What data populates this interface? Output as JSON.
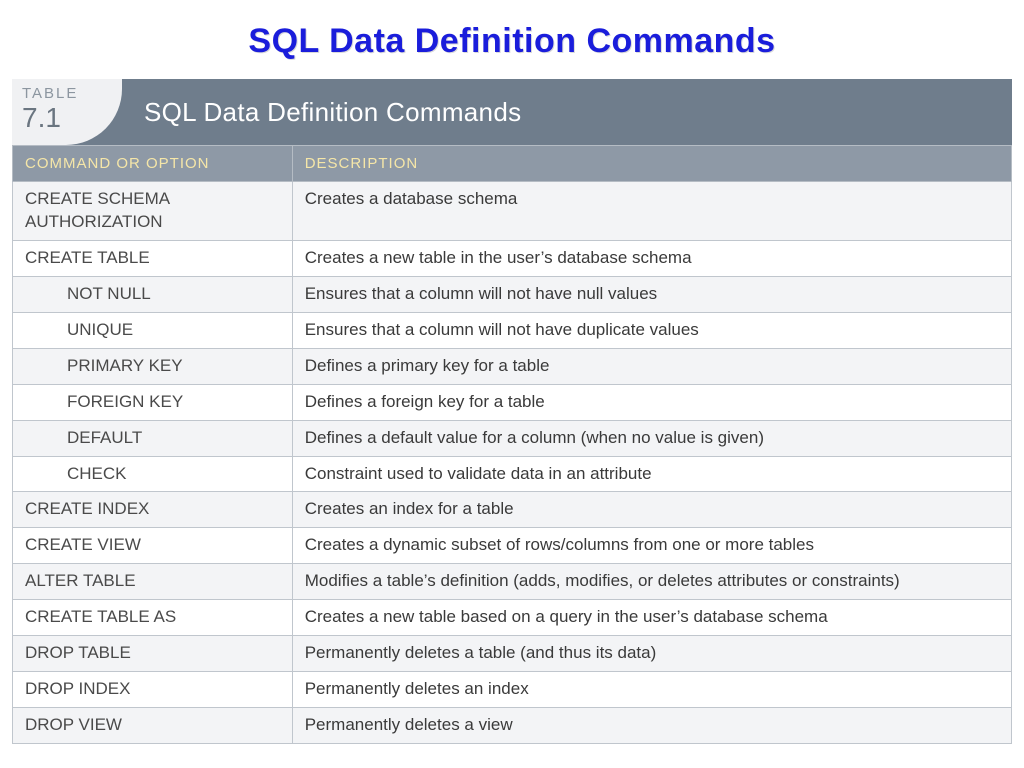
{
  "page_title": "SQL Data Definition Commands",
  "table": {
    "badge_label": "TABLE",
    "badge_number": "7.1",
    "caption": "SQL Data Definition Commands",
    "columns": [
      "COMMAND OR OPTION",
      "DESCRIPTION"
    ],
    "header_bg": "#6f7d8c",
    "col_header_bg": "#8e99a6",
    "col_header_color": "#f5e6a8",
    "border_color": "#c0c6cd",
    "row_alt_bg": "#f3f4f6",
    "rows": [
      {
        "command": "CREATE SCHEMA AUTHORIZATION",
        "indent": false,
        "description": "Creates a database schema"
      },
      {
        "command": "CREATE TABLE",
        "indent": false,
        "description": "Creates a new table in the user’s database schema"
      },
      {
        "command": "NOT NULL",
        "indent": true,
        "description": "Ensures that a column will not have null values"
      },
      {
        "command": "UNIQUE",
        "indent": true,
        "description": "Ensures that a column will not have duplicate values"
      },
      {
        "command": "PRIMARY KEY",
        "indent": true,
        "description": "Defines a primary key for a table"
      },
      {
        "command": "FOREIGN KEY",
        "indent": true,
        "description": "Defines a foreign key for a table"
      },
      {
        "command": "DEFAULT",
        "indent": true,
        "description": "Defines a default value for a column (when no value is given)"
      },
      {
        "command": "CHECK",
        "indent": true,
        "description": "Constraint used to validate data in an attribute"
      },
      {
        "command": "CREATE INDEX",
        "indent": false,
        "description": "Creates an index for a table"
      },
      {
        "command": "CREATE VIEW",
        "indent": false,
        "description": "Creates a dynamic subset of rows/columns from one or more tables"
      },
      {
        "command": "ALTER TABLE",
        "indent": false,
        "description": "Modifies a table’s definition (adds, modifies, or deletes attributes or constraints)"
      },
      {
        "command": "CREATE TABLE AS",
        "indent": false,
        "description": "Creates a new table based on a query in the user’s database schema"
      },
      {
        "command": "DROP TABLE",
        "indent": false,
        "description": "Permanently deletes a table (and thus its data)"
      },
      {
        "command": "DROP INDEX",
        "indent": false,
        "description": "Permanently deletes an index"
      },
      {
        "command": "DROP VIEW",
        "indent": false,
        "description": "Permanently deletes a view"
      }
    ]
  }
}
